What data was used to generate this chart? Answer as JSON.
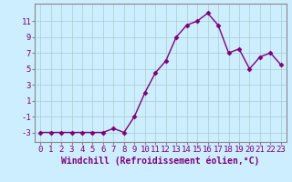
{
  "x": [
    0,
    1,
    2,
    3,
    4,
    5,
    6,
    7,
    8,
    9,
    10,
    11,
    12,
    13,
    14,
    15,
    16,
    17,
    18,
    19,
    20,
    21,
    22,
    23
  ],
  "y": [
    -3,
    -3,
    -3,
    -3,
    -3,
    -3,
    -3,
    -2.5,
    -3,
    -1,
    2,
    4.5,
    6,
    9,
    10.5,
    11,
    12,
    10.5,
    7,
    7.5,
    5,
    6.5,
    7,
    5.5
  ],
  "line_color": "#800080",
  "marker": "D",
  "marker_size": 2.5,
  "bg_color": "#cceeff",
  "grid_color": "#aacccc",
  "xlabel": "Windchill (Refroidissement éolien,°C)",
  "yticks": [
    -3,
    -1,
    1,
    3,
    5,
    7,
    9,
    11
  ],
  "xticks": [
    0,
    1,
    2,
    3,
    4,
    5,
    6,
    7,
    8,
    9,
    10,
    11,
    12,
    13,
    14,
    15,
    16,
    17,
    18,
    19,
    20,
    21,
    22,
    23
  ],
  "ylim": [
    -4.2,
    13.2
  ],
  "xlim": [
    -0.5,
    23.5
  ],
  "xlabel_fontsize": 7,
  "tick_fontsize": 6.5,
  "label_color": "#800080",
  "spine_color": "#888888",
  "linewidth": 1.0
}
